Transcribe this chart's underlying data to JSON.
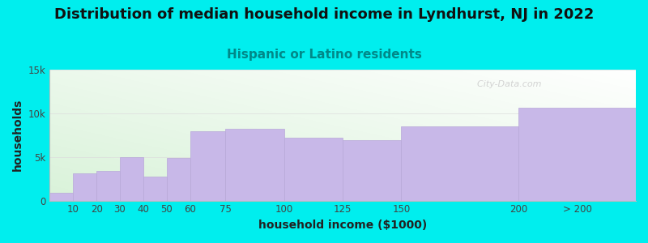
{
  "title": "Distribution of median household income in Lyndhurst, NJ in 2022",
  "subtitle": "Hispanic or Latino residents",
  "xlabel": "household income ($1000)",
  "ylabel": "households",
  "background_color": "#00EEEE",
  "bar_color": "#c8b8e8",
  "bar_edge_color": "#b8a8d8",
  "categories": [
    "10",
    "20",
    "30",
    "40",
    "50",
    "60",
    "75",
    "100",
    "125",
    "150",
    "200",
    "> 200"
  ],
  "values": [
    900,
    3100,
    3400,
    5000,
    2700,
    4900,
    7900,
    8200,
    7200,
    6900,
    8500,
    10600
  ],
  "bin_widths": [
    10,
    10,
    10,
    10,
    10,
    10,
    15,
    25,
    25,
    25,
    50,
    50
  ],
  "bin_lefts": [
    0,
    10,
    20,
    30,
    40,
    50,
    60,
    75,
    100,
    125,
    150,
    200
  ],
  "ylim": [
    0,
    15000
  ],
  "xlim": [
    0,
    250
  ],
  "yticks": [
    0,
    5000,
    10000,
    15000
  ],
  "ytick_labels": [
    "0",
    "5k",
    "10k",
    "15k"
  ],
  "xtick_positions": [
    10,
    20,
    30,
    40,
    50,
    60,
    75,
    100,
    125,
    150,
    200,
    225
  ],
  "xtick_labels": [
    "10",
    "20",
    "30",
    "40",
    "50",
    "60",
    "75",
    "100",
    "125",
    "150",
    "200",
    "> 200"
  ],
  "title_fontsize": 13,
  "subtitle_fontsize": 11,
  "axis_label_fontsize": 10,
  "tick_fontsize": 8.5,
  "watermark": "  City-Data.com",
  "title_color": "#111111",
  "subtitle_color": "#008888",
  "axis_label_color": "#222222",
  "tick_color": "#444444",
  "grid_color": "#dddddd",
  "watermark_color": "#cccccc"
}
